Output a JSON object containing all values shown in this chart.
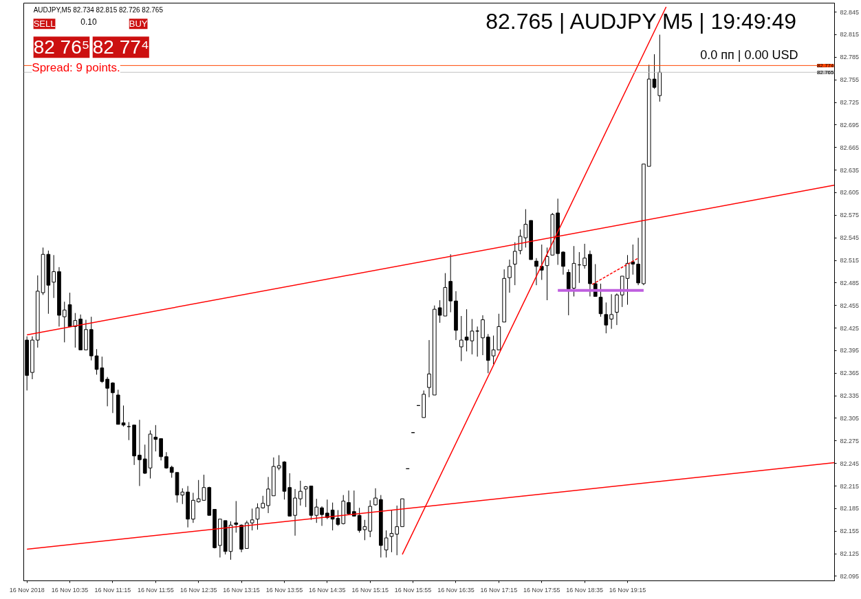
{
  "chart_data": {
    "type": "candlestick",
    "x": [
      "2018-11-16T09:55",
      "2018-11-16T10:00",
      "2018-11-16T10:05",
      "2018-11-16T10:10",
      "2018-11-16T10:15",
      "2018-11-16T10:20",
      "2018-11-16T10:25",
      "2018-11-16T10:30",
      "2018-11-16T10:35",
      "2018-11-16T10:40",
      "2018-11-16T10:45",
      "2018-11-16T10:50",
      "2018-11-16T10:55",
      "2018-11-16T11:00",
      "2018-11-16T11:05",
      "2018-11-16T11:10",
      "2018-11-16T11:15",
      "2018-11-16T11:20",
      "2018-11-16T11:25",
      "2018-11-16T11:30",
      "2018-11-16T11:35",
      "2018-11-16T11:40",
      "2018-11-16T11:45",
      "2018-11-16T11:50",
      "2018-11-16T11:55",
      "2018-11-16T12:00",
      "2018-11-16T12:05",
      "2018-11-16T12:10",
      "2018-11-16T12:15",
      "2018-11-16T12:20",
      "2018-11-16T12:25",
      "2018-11-16T12:30",
      "2018-11-16T12:35",
      "2018-11-16T12:40",
      "2018-11-16T12:45",
      "2018-11-16T12:50",
      "2018-11-16T12:55",
      "2018-11-16T13:00",
      "2018-11-16T13:05",
      "2018-11-16T13:10",
      "2018-11-16T13:15",
      "2018-11-16T13:20",
      "2018-11-16T13:25",
      "2018-11-16T13:30",
      "2018-11-16T13:35",
      "2018-11-16T13:40",
      "2018-11-16T13:45",
      "2018-11-16T13:50",
      "2018-11-16T13:55",
      "2018-11-16T14:00",
      "2018-11-16T14:05",
      "2018-11-16T14:10",
      "2018-11-16T14:15",
      "2018-11-16T14:20",
      "2018-11-16T14:25",
      "2018-11-16T14:30",
      "2018-11-16T14:35",
      "2018-11-16T14:40",
      "2018-11-16T14:45",
      "2018-11-16T14:50",
      "2018-11-16T14:55",
      "2018-11-16T15:00",
      "2018-11-16T15:05",
      "2018-11-16T15:10",
      "2018-11-16T15:15",
      "2018-11-16T15:20",
      "2018-11-16T15:25",
      "2018-11-16T15:30",
      "2018-11-16T15:35",
      "2018-11-16T15:40",
      "2018-11-16T15:45",
      "2018-11-16T15:50",
      "2018-11-16T15:55",
      "2018-11-16T16:00",
      "2018-11-16T16:05",
      "2018-11-16T16:10",
      "2018-11-16T16:15",
      "2018-11-16T16:20",
      "2018-11-16T16:25",
      "2018-11-16T16:30",
      "2018-11-16T16:35",
      "2018-11-16T16:40",
      "2018-11-16T16:45",
      "2018-11-16T16:50",
      "2018-11-16T16:55",
      "2018-11-16T17:00",
      "2018-11-16T17:05",
      "2018-11-16T17:10",
      "2018-11-16T17:15",
      "2018-11-16T17:20",
      "2018-11-16T17:25",
      "2018-11-16T17:30",
      "2018-11-16T17:35",
      "2018-11-16T17:40",
      "2018-11-16T17:45",
      "2018-11-16T17:50",
      "2018-11-16T17:55",
      "2018-11-16T18:00",
      "2018-11-16T18:05",
      "2018-11-16T18:10",
      "2018-11-16T18:15",
      "2018-11-16T18:20",
      "2018-11-16T18:25",
      "2018-11-16T18:30",
      "2018-11-16T18:35",
      "2018-11-16T18:40",
      "2018-11-16T18:45",
      "2018-11-16T18:50",
      "2018-11-16T18:55",
      "2018-11-16T19:00",
      "2018-11-16T19:05",
      "2018-11-16T19:10",
      "2018-11-16T19:15",
      "2018-11-16T19:20",
      "2018-11-16T19:25",
      "2018-11-16T19:30",
      "2018-11-16T19:35",
      "2018-11-16T19:40",
      "2018-11-16T19:45"
    ],
    "ohlc": [
      [
        82.409,
        82.414,
        82.342,
        82.362
      ],
      [
        82.366,
        82.414,
        82.357,
        82.409
      ],
      [
        82.409,
        82.495,
        82.399,
        82.474
      ],
      [
        82.472,
        82.532,
        82.469,
        82.523
      ],
      [
        82.523,
        82.528,
        82.444,
        82.482
      ],
      [
        82.486,
        82.522,
        82.465,
        82.5
      ],
      [
        82.5,
        82.506,
        82.427,
        82.442
      ],
      [
        82.44,
        82.46,
        82.406,
        82.449
      ],
      [
        82.456,
        82.472,
        82.427,
        82.427
      ],
      [
        82.427,
        82.445,
        82.399,
        82.435
      ],
      [
        82.437,
        82.443,
        82.396,
        82.396
      ],
      [
        82.396,
        82.436,
        82.396,
        82.423
      ],
      [
        82.423,
        82.44,
        82.382,
        82.388
      ],
      [
        82.388,
        82.397,
        82.363,
        82.37
      ],
      [
        82.372,
        82.387,
        82.352,
        82.354
      ],
      [
        82.357,
        82.36,
        82.321,
        82.345
      ],
      [
        82.352,
        82.353,
        82.312,
        82.339
      ],
      [
        82.336,
        82.343,
        82.297,
        82.297
      ],
      [
        82.299,
        82.322,
        82.294,
        82.296
      ],
      [
        82.294,
        82.3,
        82.276,
        82.294
      ],
      [
        82.296,
        82.296,
        82.243,
        82.255
      ],
      [
        82.256,
        82.303,
        82.215,
        82.25
      ],
      [
        82.251,
        82.27,
        82.231,
        82.232
      ],
      [
        82.239,
        82.289,
        82.225,
        82.284
      ],
      [
        82.28,
        82.296,
        82.261,
        82.277
      ],
      [
        82.278,
        82.278,
        82.249,
        82.254
      ],
      [
        82.254,
        82.26,
        82.238,
        82.239
      ],
      [
        82.24,
        82.242,
        82.226,
        82.233
      ],
      [
        82.233,
        82.233,
        82.193,
        82.203
      ],
      [
        82.203,
        82.212,
        82.191,
        82.207
      ],
      [
        82.207,
        82.215,
        82.16,
        82.171
      ],
      [
        82.171,
        82.206,
        82.166,
        82.196
      ],
      [
        82.194,
        82.223,
        82.193,
        82.198
      ],
      [
        82.196,
        82.23,
        82.196,
        82.213
      ],
      [
        82.213,
        82.214,
        82.176,
        82.176
      ],
      [
        82.184,
        82.184,
        82.132,
        82.133
      ],
      [
        82.136,
        82.171,
        82.12,
        82.171
      ],
      [
        82.169,
        82.169,
        82.124,
        82.128
      ],
      [
        82.128,
        82.168,
        82.117,
        82.163
      ],
      [
        82.166,
        82.195,
        82.153,
        82.164
      ],
      [
        82.163,
        82.164,
        82.127,
        82.131
      ],
      [
        82.132,
        82.169,
        82.132,
        82.166
      ],
      [
        82.166,
        82.185,
        82.156,
        82.17
      ],
      [
        82.171,
        82.192,
        82.157,
        82.186
      ],
      [
        82.186,
        82.202,
        82.185,
        82.192
      ],
      [
        82.189,
        82.227,
        82.179,
        82.211
      ],
      [
        82.202,
        82.253,
        82.202,
        82.241
      ],
      [
        82.239,
        82.256,
        82.236,
        82.242
      ],
      [
        82.247,
        82.248,
        82.197,
        82.208
      ],
      [
        82.213,
        82.232,
        82.175,
        82.175
      ],
      [
        82.176,
        82.211,
        82.149,
        82.199
      ],
      [
        82.198,
        82.222,
        82.189,
        82.208
      ],
      [
        82.211,
        82.215,
        82.187,
        82.214
      ],
      [
        82.215,
        82.215,
        82.17,
        82.176
      ],
      [
        82.176,
        82.198,
        82.166,
        82.187
      ],
      [
        82.186,
        82.188,
        82.162,
        82.177
      ],
      [
        82.179,
        82.197,
        82.171,
        82.173
      ],
      [
        82.183,
        82.193,
        82.156,
        82.171
      ],
      [
        82.172,
        82.183,
        82.162,
        82.164
      ],
      [
        82.165,
        82.203,
        82.164,
        82.195
      ],
      [
        82.193,
        82.209,
        82.177,
        82.178
      ],
      [
        82.181,
        82.209,
        82.175,
        82.175
      ],
      [
        82.176,
        82.186,
        82.153,
        82.156
      ],
      [
        82.157,
        82.17,
        82.143,
        82.161
      ],
      [
        82.155,
        82.196,
        82.147,
        82.188
      ],
      [
        82.19,
        82.212,
        82.189,
        82.199
      ],
      [
        82.197,
        82.203,
        82.12,
        82.136
      ],
      [
        82.13,
        82.156,
        82.12,
        82.146
      ],
      [
        82.148,
        82.183,
        82.127,
        82.152
      ],
      [
        82.151,
        82.189,
        82.123,
        82.161
      ],
      [
        82.161,
        82.198,
        82.161,
        82.198
      ],
      [
        82.238,
        82.238,
        82.238,
        82.238
      ],
      [
        82.286,
        82.286,
        82.286,
        82.286
      ],
      [
        82.322,
        82.322,
        82.322,
        82.322
      ],
      [
        82.306,
        82.342,
        82.306,
        82.337
      ],
      [
        82.346,
        82.409,
        82.333,
        82.364
      ],
      [
        82.336,
        82.455,
        82.336,
        82.45
      ],
      [
        82.452,
        82.462,
        82.432,
        82.442
      ],
      [
        82.441,
        82.498,
        82.441,
        82.479
      ],
      [
        82.487,
        82.523,
        82.446,
        82.461
      ],
      [
        82.461,
        82.474,
        82.409,
        82.422
      ],
      [
        82.4,
        82.441,
        82.381,
        82.409
      ],
      [
        82.413,
        82.45,
        82.394,
        82.409
      ],
      [
        82.408,
        82.437,
        82.39,
        82.421
      ],
      [
        82.421,
        82.427,
        82.387,
        82.421
      ],
      [
        82.412,
        82.442,
        82.389,
        82.436
      ],
      [
        82.413,
        82.417,
        82.365,
        82.382
      ],
      [
        82.388,
        82.415,
        82.377,
        82.396
      ],
      [
        82.396,
        82.444,
        82.396,
        82.427
      ],
      [
        82.433,
        82.503,
        82.433,
        82.491
      ],
      [
        82.492,
        82.516,
        82.472,
        82.507
      ],
      [
        82.51,
        82.539,
        82.482,
        82.527
      ],
      [
        82.528,
        82.556,
        82.523,
        82.547
      ],
      [
        82.545,
        82.583,
        82.532,
        82.563
      ],
      [
        82.568,
        82.568,
        82.516,
        82.516
      ],
      [
        82.514,
        82.518,
        82.482,
        82.507
      ],
      [
        82.507,
        82.536,
        82.489,
        82.502
      ],
      [
        82.508,
        82.532,
        82.462,
        82.52
      ],
      [
        82.522,
        82.578,
        82.522,
        82.576
      ],
      [
        82.578,
        82.597,
        82.509,
        82.524
      ],
      [
        82.526,
        82.527,
        82.496,
        82.507
      ],
      [
        82.499,
        82.503,
        82.442,
        82.477
      ],
      [
        82.478,
        82.534,
        82.467,
        82.511
      ],
      [
        82.509,
        82.526,
        82.485,
        82.509
      ],
      [
        82.508,
        82.537,
        82.504,
        82.518
      ],
      [
        82.523,
        82.528,
        82.467,
        82.484
      ],
      [
        82.484,
        82.51,
        82.467,
        82.467
      ],
      [
        82.466,
        82.484,
        82.44,
        82.444
      ],
      [
        82.443,
        82.459,
        82.418,
        82.429
      ],
      [
        82.437,
        82.47,
        82.424,
        82.443
      ],
      [
        82.446,
        82.471,
        82.429,
        82.469
      ],
      [
        82.469,
        82.494,
        82.453,
        82.494
      ],
      [
        82.491,
        82.522,
        82.456,
        82.511
      ],
      [
        82.513,
        82.536,
        82.496,
        82.51
      ],
      [
        82.51,
        82.545,
        82.482,
        82.485
      ],
      [
        82.484,
        82.643,
        82.482,
        82.643
      ],
      [
        82.64,
        82.775,
        82.64,
        82.756
      ],
      [
        82.756,
        82.789,
        82.743,
        82.745
      ],
      [
        82.734,
        82.815,
        82.726,
        82.765
      ]
    ],
    "series": [
      {
        "type": "line",
        "color": "#ff0000",
        "x": [
          "2018-11-16T09:55",
          "2018-11-16T22:28"
        ],
        "values": [
          82.416,
          82.615
        ]
      },
      {
        "type": "line",
        "color": "#ff0000",
        "x": [
          "2018-11-16T09:55",
          "2018-11-16T22:28"
        ],
        "values": [
          82.131,
          82.246
        ]
      },
      {
        "type": "line",
        "color": "#ff0000",
        "x": [
          "2018-11-16T15:45",
          "2018-11-16T19:51"
        ],
        "values": [
          82.124,
          82.852
        ]
      },
      {
        "type": "line",
        "color": "#bf5fdf",
        "x": [
          "2018-11-16T18:10",
          "2018-11-16T19:30"
        ],
        "values": [
          82.475,
          82.475
        ]
      },
      {
        "type": "line",
        "color": "#ff0000",
        "line_style": "dashed",
        "x": [
          "2018-11-16T18:42",
          "2018-11-16T19:25"
        ],
        "values": [
          82.483,
          82.518
        ]
      }
    ],
    "ref_lines": [
      {
        "axis": "y",
        "value": 82.774,
        "label": "82.774",
        "color": "#ff4500"
      },
      {
        "axis": "y",
        "value": 82.765,
        "label": "82.765",
        "color": "#c0c0c0"
      }
    ],
    "xlim": [
      "2018-11-16T09:52",
      "2018-11-16T22:28"
    ],
    "xticks": [
      {
        "value": "2018-11-16T09:55",
        "label": "16 Nov 2018"
      },
      {
        "value": "2018-11-16T10:35",
        "label": "16 Nov 10:35"
      },
      {
        "value": "2018-11-16T11:15",
        "label": "16 Nov 11:15"
      },
      {
        "value": "2018-11-16T11:55",
        "label": "16 Nov 11:55"
      },
      {
        "value": "2018-11-16T12:35",
        "label": "16 Nov 12:35"
      },
      {
        "value": "2018-11-16T13:15",
        "label": "16 Nov 13:15"
      },
      {
        "value": "2018-11-16T13:55",
        "label": "16 Nov 13:55"
      },
      {
        "value": "2018-11-16T14:35",
        "label": "16 Nov 14:35"
      },
      {
        "value": "2018-11-16T15:15",
        "label": "16 Nov 15:15"
      },
      {
        "value": "2018-11-16T15:55",
        "label": "16 Nov 15:55"
      },
      {
        "value": "2018-11-16T16:35",
        "label": "16 Nov 16:35"
      },
      {
        "value": "2018-11-16T17:15",
        "label": "16 Nov 17:15"
      },
      {
        "value": "2018-11-16T17:55",
        "label": "16 Nov 17:55"
      },
      {
        "value": "2018-11-16T18:35",
        "label": "16 Nov 18:35"
      },
      {
        "value": "2018-11-16T19:15",
        "label": "16 Nov 19:15"
      }
    ],
    "ylim": [
      82.089,
      82.857
    ],
    "yticks": [
      82.095,
      82.125,
      82.155,
      82.185,
      82.215,
      82.245,
      82.275,
      82.305,
      82.335,
      82.365,
      82.395,
      82.425,
      82.455,
      82.485,
      82.515,
      82.545,
      82.575,
      82.605,
      82.635,
      82.665,
      82.695,
      82.725,
      82.755,
      82.785,
      82.815,
      82.845
    ],
    "grid": false,
    "annotations": [
      "AUDJPY,M5  82.734 82.815 82.726 82.765",
      "82.765 | AUDJPY M5 | 19:49:49",
      "0.0 пп | 0.00 USD",
      "Spread: 9 points.",
      "SELL",
      "0.10",
      "BUY",
      "82 76⁵",
      "82 77⁴"
    ]
  }
}
